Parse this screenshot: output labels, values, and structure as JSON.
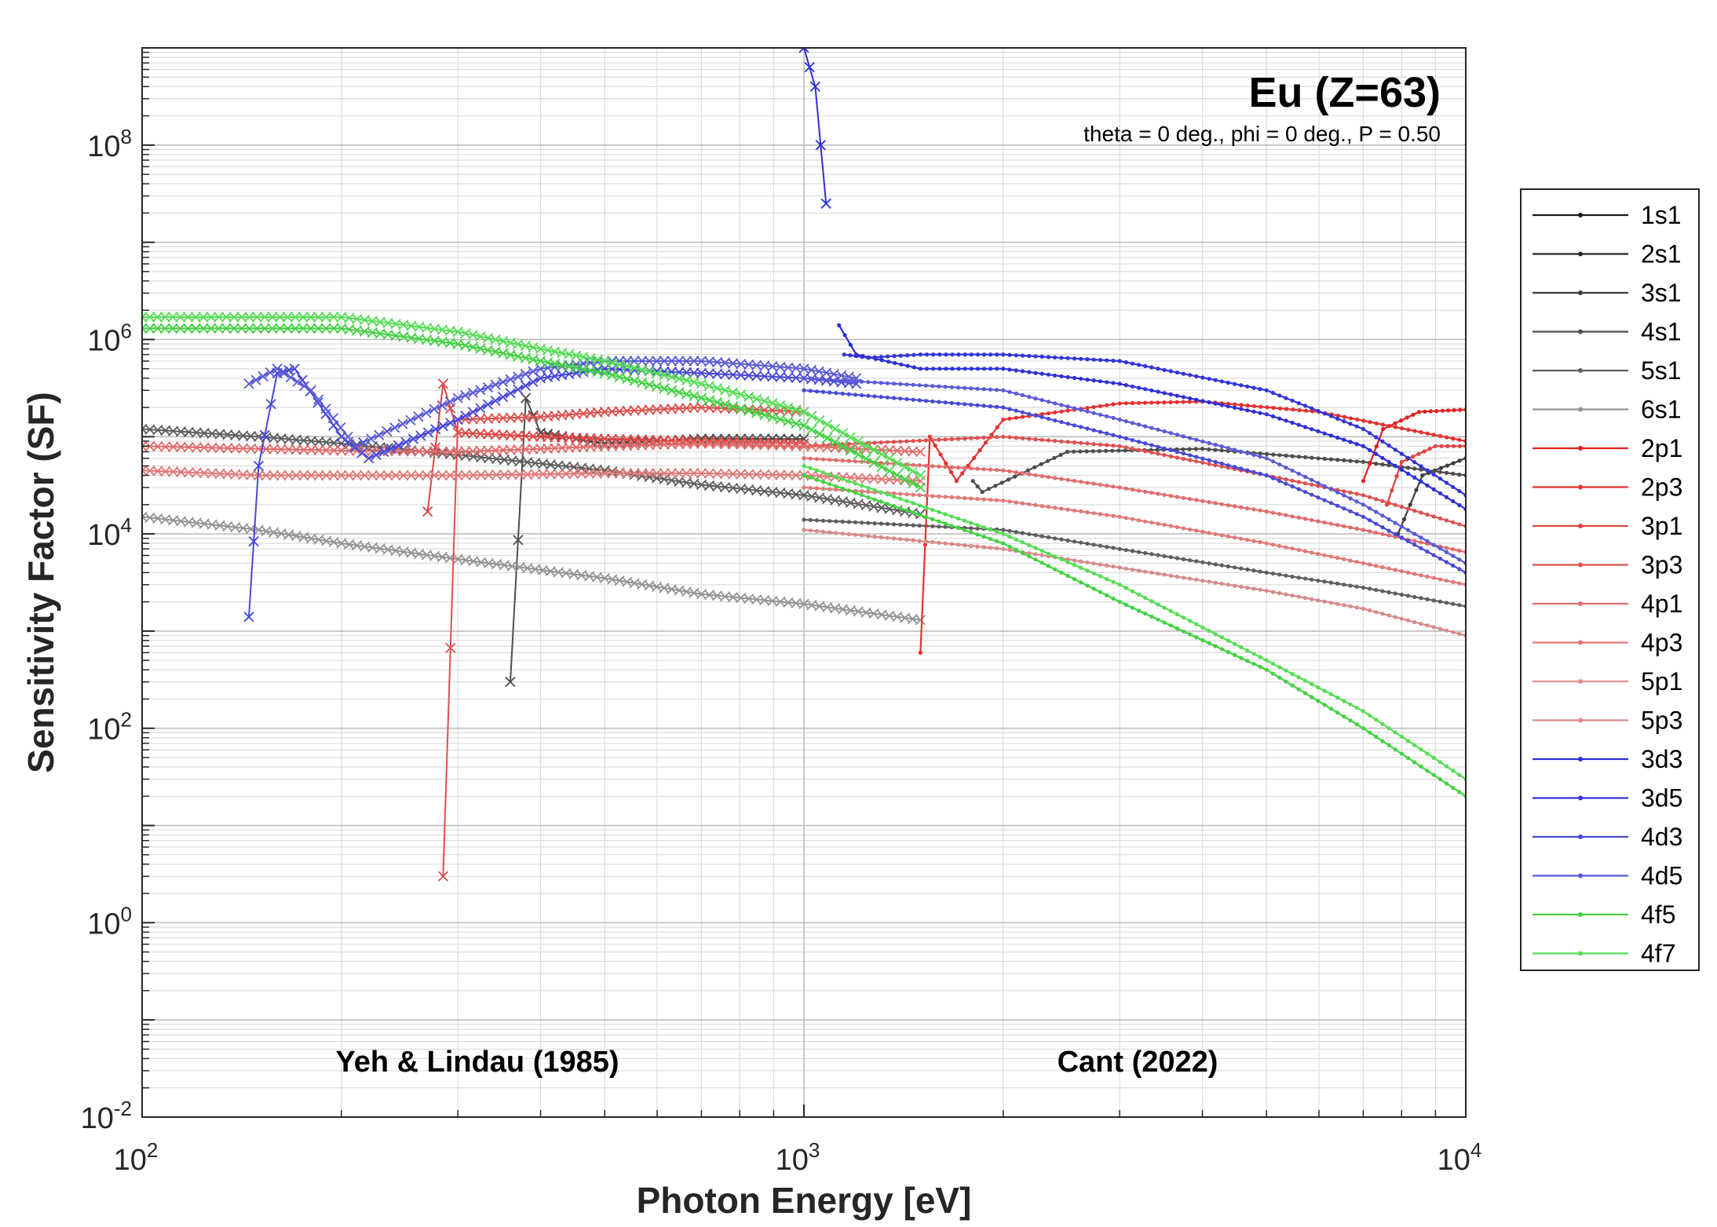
{
  "chart_data": {
    "type": "line",
    "title": "Eu (Z=63)",
    "subtitle": "theta = 0 deg., phi = 0 deg., P = 0.50",
    "xlabel": "Photon Energy [eV]",
    "ylabel": "Sensitivity Factor (SF)",
    "xscale": "log",
    "yscale": "log",
    "xlim": [
      100,
      10000
    ],
    "ylim": [
      0.01,
      1000000000
    ],
    "x_ticks": [
      {
        "base": "10",
        "exp": "2",
        "value": 100
      },
      {
        "base": "10",
        "exp": "3",
        "value": 1000
      },
      {
        "base": "10",
        "exp": "4",
        "value": 10000
      }
    ],
    "y_ticks": [
      {
        "base": "10",
        "exp": "-2",
        "value": 0.01
      },
      {
        "base": "10",
        "exp": "0",
        "value": 1
      },
      {
        "base": "10",
        "exp": "2",
        "value": 100
      },
      {
        "base": "10",
        "exp": "4",
        "value": 10000
      },
      {
        "base": "10",
        "exp": "6",
        "value": 1000000
      },
      {
        "base": "10",
        "exp": "8",
        "value": 100000000
      }
    ],
    "grid": true,
    "legend_position": "right",
    "annotations": [
      {
        "text": "Yeh & Lindau (1985)",
        "x": 300,
        "y": 0.04
      },
      {
        "text": "Cant (2022)",
        "x": 3000,
        "y": 0.04
      }
    ],
    "series": [
      {
        "name": "1s1",
        "color": "#1a1a1a",
        "yeh": [],
        "cant": []
      },
      {
        "name": "2s1",
        "color": "#262626",
        "yeh": [],
        "cant": []
      },
      {
        "name": "3s1",
        "color": "#3d3d3d",
        "yeh": [],
        "cant": [
          [
            7900,
            10000
          ],
          [
            8600,
            40000
          ],
          [
            10000,
            60000
          ]
        ]
      },
      {
        "name": "4s1",
        "color": "#4d4d4d",
        "yeh": [
          [
            360,
            300
          ],
          [
            380,
            250000
          ],
          [
            400,
            110000
          ],
          [
            500,
            85000
          ],
          [
            700,
            95000
          ],
          [
            1000,
            95000
          ]
        ],
        "cant": [
          [
            1800,
            35000
          ],
          [
            1860,
            27000
          ],
          [
            2500,
            70000
          ],
          [
            4000,
            75000
          ],
          [
            7000,
            55000
          ],
          [
            10000,
            40000
          ]
        ]
      },
      {
        "name": "5s1",
        "color": "#5e5e5e",
        "yeh": [
          [
            100,
            120000
          ],
          [
            150,
            100000
          ],
          [
            200,
            85000
          ],
          [
            300,
            65000
          ],
          [
            500,
            45000
          ],
          [
            700,
            32000
          ],
          [
            1000,
            25000
          ],
          [
            1500,
            16000
          ]
        ],
        "cant": [
          [
            1000,
            14000
          ],
          [
            2000,
            11000
          ],
          [
            3000,
            7000
          ],
          [
            5000,
            4000
          ],
          [
            7000,
            2800
          ],
          [
            10000,
            1800
          ]
        ]
      },
      {
        "name": "6s1",
        "color": "#959595",
        "yeh": [
          [
            100,
            15000
          ],
          [
            150,
            11000
          ],
          [
            200,
            8000
          ],
          [
            300,
            5500
          ],
          [
            500,
            3500
          ],
          [
            700,
            2400
          ],
          [
            1000,
            1900
          ],
          [
            1500,
            1300
          ]
        ],
        "cant": []
      },
      {
        "name": "2p1",
        "color": "#e02020",
        "yeh": [],
        "cant": [
          [
            7000,
            35000
          ],
          [
            7500,
            120000
          ],
          [
            8500,
            180000
          ],
          [
            10000,
            190000
          ]
        ]
      },
      {
        "name": "2p3",
        "color": "#e43131",
        "yeh": [],
        "cant": [
          [
            1500,
            600
          ],
          [
            1550,
            100000
          ],
          [
            1700,
            35000
          ],
          [
            2000,
            150000
          ],
          [
            3000,
            220000
          ],
          [
            4000,
            230000
          ],
          [
            6000,
            180000
          ],
          [
            10000,
            90000
          ]
        ]
      },
      {
        "name": "3p1",
        "color": "#df4444",
        "yeh": [
          [
            270,
            17000
          ],
          [
            285,
            350000
          ],
          [
            300,
            110000
          ],
          [
            400,
            100000
          ],
          [
            500,
            95000
          ],
          [
            700,
            90000
          ],
          [
            1000,
            85000
          ]
        ],
        "cant": [
          [
            7600,
            20000
          ],
          [
            8000,
            55000
          ],
          [
            9000,
            80000
          ],
          [
            10000,
            80000
          ]
        ]
      },
      {
        "name": "3p3",
        "color": "#de5050",
        "yeh": [
          [
            285,
            3
          ],
          [
            300,
            150000
          ],
          [
            400,
            160000
          ],
          [
            500,
            180000
          ],
          [
            700,
            200000
          ],
          [
            1000,
            180000
          ]
        ],
        "cant": [
          [
            1000,
            80000
          ],
          [
            2000,
            100000
          ],
          [
            3000,
            80000
          ],
          [
            5000,
            40000
          ],
          [
            7000,
            25000
          ],
          [
            10000,
            12000
          ]
        ]
      },
      {
        "name": "4p1",
        "color": "#e06c6c",
        "yeh": [
          [
            100,
            80000
          ],
          [
            150,
            75000
          ],
          [
            200,
            72000
          ],
          [
            300,
            70000
          ],
          [
            400,
            75000
          ],
          [
            500,
            80000
          ],
          [
            700,
            85000
          ],
          [
            1000,
            80000
          ],
          [
            1500,
            70000
          ]
        ],
        "cant": [
          [
            1000,
            60000
          ],
          [
            2000,
            45000
          ],
          [
            3000,
            30000
          ],
          [
            5000,
            17000
          ],
          [
            7000,
            11000
          ],
          [
            10000,
            6500
          ]
        ]
      },
      {
        "name": "4p3",
        "color": "#e07878",
        "yeh": [
          [
            100,
            45000
          ],
          [
            150,
            40000
          ],
          [
            200,
            40000
          ],
          [
            300,
            40000
          ],
          [
            500,
            42000
          ],
          [
            700,
            42000
          ],
          [
            1000,
            40000
          ],
          [
            1500,
            35000
          ]
        ],
        "cant": [
          [
            1000,
            30000
          ],
          [
            2000,
            22000
          ],
          [
            3000,
            15000
          ],
          [
            5000,
            8000
          ],
          [
            7000,
            5000
          ],
          [
            10000,
            3000
          ]
        ]
      },
      {
        "name": "5p1",
        "color": "#e08e8e",
        "yeh": [],
        "cant": []
      },
      {
        "name": "5p3",
        "color": "#d88a8a",
        "yeh": [],
        "cant": [
          [
            1000,
            11000
          ],
          [
            2000,
            7000
          ],
          [
            3000,
            4500
          ],
          [
            5000,
            2600
          ],
          [
            7000,
            1700
          ],
          [
            10000,
            900
          ]
        ]
      },
      {
        "name": "3d3",
        "color": "#2f2fd6",
        "yeh": [
          [
            1000,
            1000000000
          ],
          [
            1040,
            400000000
          ],
          [
            1080,
            25000000
          ]
        ],
        "cant": [
          [
            1130,
            1400000
          ],
          [
            1200,
            700000
          ],
          [
            1500,
            500000
          ],
          [
            2000,
            500000
          ],
          [
            3000,
            350000
          ],
          [
            5000,
            170000
          ],
          [
            7000,
            80000
          ],
          [
            10000,
            18000
          ]
        ]
      },
      {
        "name": "3d5",
        "color": "#3333d9",
        "yeh": [],
        "cant": [
          [
            1150,
            700000
          ],
          [
            1250,
            650000
          ],
          [
            1500,
            700000
          ],
          [
            2000,
            700000
          ],
          [
            3000,
            600000
          ],
          [
            5000,
            300000
          ],
          [
            7000,
            120000
          ],
          [
            10000,
            25000
          ]
        ]
      },
      {
        "name": "4d3",
        "color": "#4848d8",
        "yeh": [
          [
            145,
            1400
          ],
          [
            150,
            50000
          ],
          [
            160,
            450000
          ],
          [
            170,
            500000
          ],
          [
            200,
            100000
          ],
          [
            220,
            60000
          ],
          [
            300,
            150000
          ],
          [
            400,
            400000
          ],
          [
            500,
            500000
          ],
          [
            700,
            450000
          ],
          [
            1000,
            400000
          ],
          [
            1200,
            350000
          ]
        ],
        "cant": [
          [
            1000,
            300000
          ],
          [
            2000,
            200000
          ],
          [
            3000,
            100000
          ],
          [
            5000,
            40000
          ],
          [
            7000,
            15000
          ],
          [
            10000,
            4000
          ]
        ]
      },
      {
        "name": "4d5",
        "color": "#5a5ad6",
        "yeh": [
          [
            145,
            350000
          ],
          [
            160,
            500000
          ],
          [
            180,
            300000
          ],
          [
            210,
            80000
          ],
          [
            300,
            250000
          ],
          [
            400,
            500000
          ],
          [
            500,
            600000
          ],
          [
            700,
            600000
          ],
          [
            1000,
            500000
          ],
          [
            1200,
            400000
          ]
        ],
        "cant": [
          [
            1000,
            400000
          ],
          [
            2000,
            300000
          ],
          [
            3000,
            150000
          ],
          [
            5000,
            60000
          ],
          [
            7000,
            20000
          ],
          [
            10000,
            5000
          ]
        ]
      },
      {
        "name": "4f5",
        "color": "#43d143",
        "yeh": [
          [
            100,
            1300000
          ],
          [
            200,
            1300000
          ],
          [
            300,
            900000
          ],
          [
            400,
            600000
          ],
          [
            500,
            450000
          ],
          [
            700,
            250000
          ],
          [
            1000,
            130000
          ],
          [
            1500,
            30000
          ]
        ],
        "cant": [
          [
            1000,
            40000
          ],
          [
            2000,
            8000
          ],
          [
            3000,
            2000
          ],
          [
            5000,
            400
          ],
          [
            7000,
            100
          ],
          [
            10000,
            20
          ]
        ]
      },
      {
        "name": "4f7",
        "color": "#55dd55",
        "yeh": [
          [
            100,
            1700000
          ],
          [
            200,
            1700000
          ],
          [
            300,
            1200000
          ],
          [
            400,
            800000
          ],
          [
            500,
            600000
          ],
          [
            700,
            350000
          ],
          [
            1000,
            180000
          ],
          [
            1500,
            40000
          ]
        ],
        "cant": [
          [
            1000,
            50000
          ],
          [
            2000,
            10000
          ],
          [
            3000,
            3000
          ],
          [
            5000,
            500
          ],
          [
            7000,
            150
          ],
          [
            10000,
            30
          ]
        ]
      }
    ]
  }
}
